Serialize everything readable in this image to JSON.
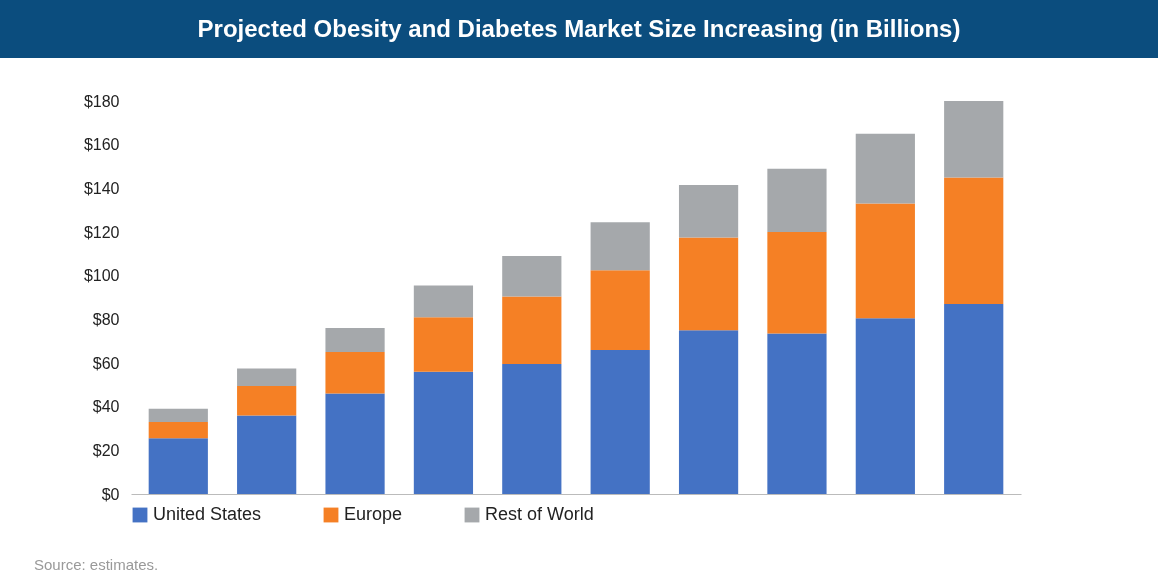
{
  "chart_data": {
    "type": "bar",
    "title": "Projected Obesity and Diabetes Market Size Increasing (in Billions)",
    "categories": [
      null,
      null,
      null,
      null,
      null,
      null,
      null,
      null,
      null,
      null
    ],
    "stacked": true,
    "series": [
      {
        "name": "United States",
        "color": "#4472c4",
        "values": [
          25.5,
          36,
          46,
          56,
          59.5,
          66,
          75,
          73.5,
          80.5,
          87
        ]
      },
      {
        "name": "Europe",
        "color": "#f58025",
        "values": [
          7.5,
          13.5,
          19,
          25,
          31,
          36.5,
          42.5,
          46.5,
          52.5,
          58
        ]
      },
      {
        "name": "Rest of World",
        "color": "#a5a8ab",
        "values": [
          6,
          8,
          11,
          14.5,
          18.5,
          22,
          24,
          29,
          32,
          35
        ]
      }
    ],
    "ylim": [
      0,
      180
    ],
    "yticks": [
      {
        "value": 0,
        "label": "$0"
      },
      {
        "value": 20,
        "label": "$20"
      },
      {
        "value": 40,
        "label": "$40"
      },
      {
        "value": 60,
        "label": "$60"
      },
      {
        "value": 80,
        "label": "$80"
      },
      {
        "value": 100,
        "label": "$100"
      },
      {
        "value": 120,
        "label": "$120"
      },
      {
        "value": 140,
        "label": "$140"
      },
      {
        "value": 160,
        "label": "$160"
      },
      {
        "value": 180,
        "label": "$180"
      }
    ],
    "tick_labels": "y",
    "legend": "bottom",
    "annotations": [
      "Source: estimates."
    ]
  }
}
